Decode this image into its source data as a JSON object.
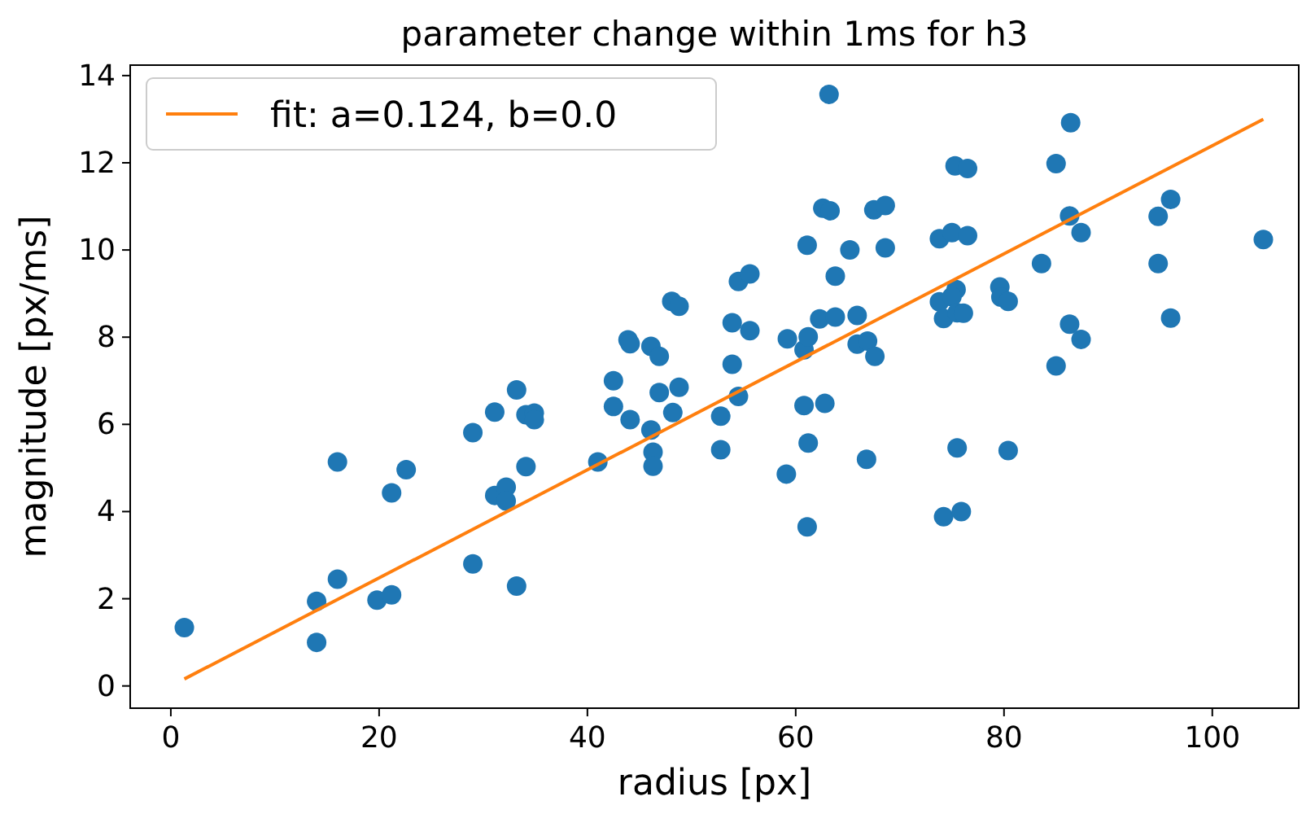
{
  "chart_data": {
    "type": "scatter",
    "title": "parameter change within 1ms for h3",
    "xlabel": "radius [px]",
    "ylabel": "magnitude [px/ms]",
    "xlim": [
      -3.9,
      108.3
    ],
    "ylim": [
      -0.51,
      14.24
    ],
    "xticks": [
      0,
      20,
      40,
      60,
      80,
      100
    ],
    "yticks": [
      0,
      2,
      4,
      6,
      8,
      10,
      12,
      14
    ],
    "grid": false,
    "legend": "top left",
    "marker": "circle",
    "series": [
      {
        "color": "#1f77b4",
        "x": [
          1.3,
          14.0,
          14.0,
          16.0,
          16.0,
          19.8,
          21.2,
          22.6,
          21.2,
          29.0,
          29.0,
          31.1,
          33.2,
          33.2,
          34.1,
          34.9,
          34.9,
          34.1,
          31.1,
          32.2,
          32.2,
          41.0,
          42.5,
          42.5,
          44.1,
          43.9,
          44.1,
          46.1,
          46.9,
          46.1,
          46.3,
          46.3,
          46.9,
          48.2,
          48.8,
          48.1,
          48.8,
          52.8,
          52.8,
          53.9,
          53.9,
          54.5,
          55.6,
          55.6,
          54.5,
          59.1,
          61.1,
          59.2,
          60.8,
          61.2,
          60.8,
          62.8,
          61.2,
          61.1,
          62.3,
          63.8,
          63.8,
          65.2,
          65.9,
          65.9,
          66.9,
          67.6,
          66.8,
          63.2,
          62.6,
          63.3,
          67.5,
          68.6,
          68.6,
          73.8,
          75.0,
          76.5,
          75.3,
          76.5,
          73.8,
          75.4,
          75.0,
          74.2,
          75.5,
          76.1,
          79.6,
          79.7,
          80.4,
          75.5,
          80.4,
          74.2,
          75.9,
          83.6,
          85.0,
          86.4,
          86.3,
          87.4,
          86.3,
          87.4,
          85.0,
          94.8,
          96.0,
          94.8,
          96.0,
          104.9
        ],
        "values": [
          1.34,
          1.94,
          1.0,
          5.14,
          2.45,
          1.97,
          2.09,
          4.96,
          4.43,
          2.8,
          5.81,
          6.28,
          6.79,
          2.29,
          6.22,
          6.26,
          6.11,
          5.03,
          4.37,
          4.56,
          4.24,
          5.14,
          7.0,
          6.41,
          6.11,
          7.94,
          7.85,
          7.79,
          7.56,
          5.87,
          5.36,
          5.04,
          6.73,
          6.27,
          6.85,
          8.82,
          8.71,
          6.19,
          5.42,
          8.33,
          7.38,
          9.28,
          9.45,
          8.15,
          6.64,
          4.86,
          3.65,
          7.96,
          7.71,
          8.01,
          6.43,
          6.48,
          5.57,
          10.11,
          8.42,
          8.46,
          9.4,
          10.0,
          8.5,
          7.84,
          7.91,
          7.56,
          5.2,
          13.57,
          10.96,
          10.9,
          10.92,
          11.02,
          10.05,
          10.26,
          10.4,
          10.33,
          11.93,
          11.87,
          8.81,
          9.09,
          8.93,
          8.43,
          8.56,
          8.55,
          9.15,
          8.92,
          8.82,
          5.46,
          5.4,
          3.88,
          4.0,
          9.69,
          11.98,
          12.92,
          10.78,
          10.4,
          8.3,
          7.95,
          7.34,
          10.77,
          11.16,
          9.69,
          8.44,
          10.24
        ]
      },
      {
        "type": "line",
        "name": "fit: a=0.124, b=0.0",
        "color": "#ff7f0e",
        "x": [
          1.3,
          104.9
        ],
        "values": [
          0.16,
          13.0
        ],
        "marker": "none",
        "line_style": "solid"
      }
    ]
  }
}
